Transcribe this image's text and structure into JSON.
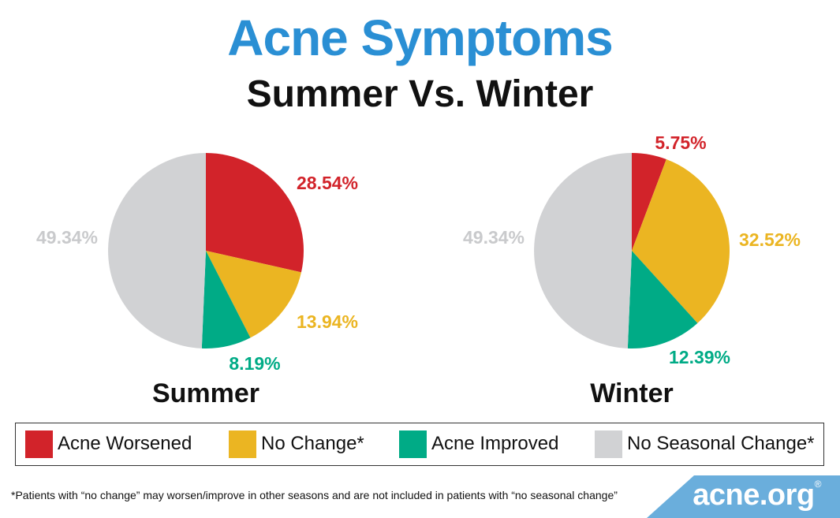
{
  "title": "Acne Symptoms",
  "subtitle": "Summer Vs. Winter",
  "colors": {
    "title": "#2a8fd4",
    "acne_worsened": "#d2232a",
    "no_change": "#ebb522",
    "acne_improved": "#00ab86",
    "no_seasonal_change": "#d1d2d4",
    "no_seasonal_label": "#c9cacc"
  },
  "chart_data": [
    {
      "type": "pie",
      "title": "Summer",
      "categories": [
        "Acne Worsened",
        "No Change*",
        "Acne Improved",
        "No Seasonal Change*"
      ],
      "values": [
        28.54,
        13.94,
        8.19,
        49.34
      ],
      "labels": [
        "28.54%",
        "13.94%",
        "8.19%",
        "49.34%"
      ]
    },
    {
      "type": "pie",
      "title": "Winter",
      "categories": [
        "Acne Worsened",
        "No Change*",
        "Acne Improved",
        "No Seasonal Change*"
      ],
      "values": [
        5.75,
        32.52,
        12.39,
        49.34
      ],
      "labels": [
        "5.75%",
        "32.52%",
        "12.39%",
        "49.34%"
      ]
    }
  ],
  "legend": {
    "items": [
      {
        "label": "Acne Worsened",
        "color_key": "acne_worsened"
      },
      {
        "label": "No Change*",
        "color_key": "no_change"
      },
      {
        "label": "Acne Improved",
        "color_key": "acne_improved"
      },
      {
        "label": "No Seasonal Change*",
        "color_key": "no_seasonal_change"
      }
    ]
  },
  "footnote": "*Patients with “no change” may worsen/improve in other seasons and are not included in patients with “no seasonal change”",
  "logo": {
    "text": "acne.org",
    "reg": "®"
  }
}
